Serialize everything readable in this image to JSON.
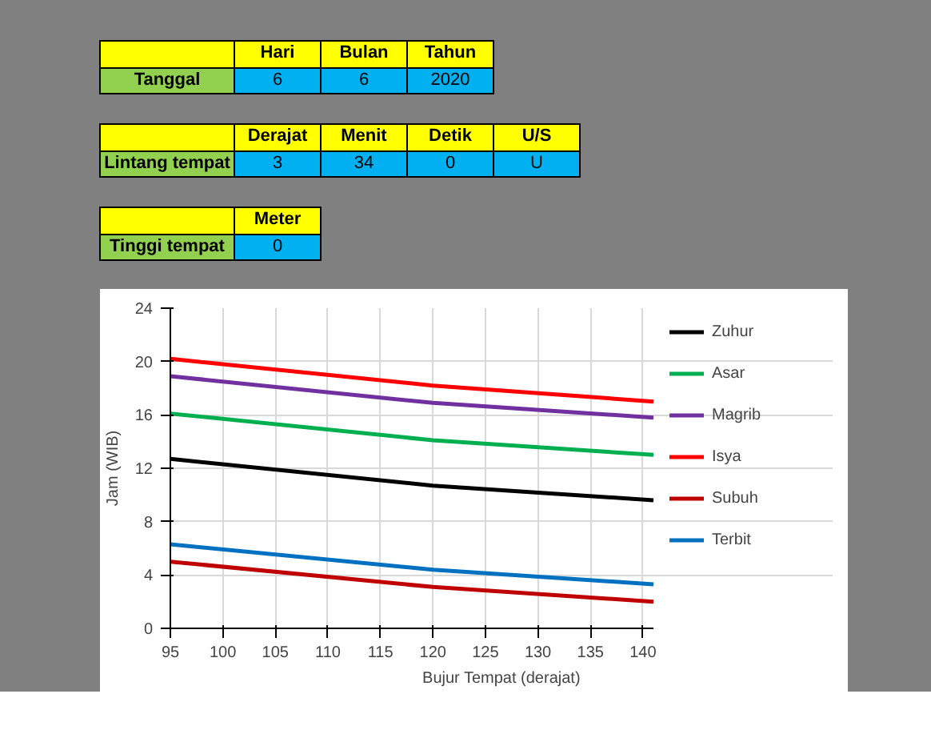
{
  "chart_data": [
    {
      "type": "other",
      "categories": [
        "Hari",
        "Bulan",
        "Tahun"
      ],
      "y_categories": [
        "Tanggal"
      ],
      "cell_labels": [
        [
          "6",
          "6",
          "2020"
        ]
      ]
    },
    {
      "type": "other",
      "categories": [
        "Derajat",
        "Menit",
        "Detik",
        "U/S"
      ],
      "y_categories": [
        "Lintang tempat"
      ],
      "cell_labels": [
        [
          "3",
          "34",
          "0",
          "U"
        ]
      ]
    },
    {
      "type": "other",
      "categories": [
        "Meter"
      ],
      "y_categories": [
        "Tinggi tempat"
      ],
      "cell_labels": [
        [
          "0"
        ]
      ]
    },
    {
      "type": "line",
      "xlabel": "Bujur Tempat (derajat)",
      "ylabel": "Jam (WIB)",
      "x": [
        95,
        120,
        141
      ],
      "xlim": [
        95,
        141
      ],
      "xticks": [
        95,
        100,
        105,
        110,
        115,
        120,
        125,
        130,
        135,
        140
      ],
      "ylim": [
        0,
        24
      ],
      "yticks": [
        0,
        4,
        8,
        12,
        16,
        20,
        24
      ],
      "grid": true,
      "legend": "right",
      "series": [
        {
          "name": "Zuhur",
          "color": "#000000",
          "values": [
            12.7,
            10.7,
            9.6
          ]
        },
        {
          "name": "Asar",
          "color": "#00b050",
          "values": [
            16.1,
            14.1,
            13.0
          ]
        },
        {
          "name": "Magrib",
          "color": "#7030a0",
          "values": [
            18.9,
            16.9,
            15.8
          ]
        },
        {
          "name": "Isya",
          "color": "#ff0000",
          "values": [
            20.2,
            18.2,
            17.0
          ]
        },
        {
          "name": "Subuh",
          "color": "#c00000",
          "values": [
            5.0,
            3.1,
            2.0
          ]
        },
        {
          "name": "Terbit",
          "color": "#0070c0",
          "values": [
            6.3,
            4.4,
            3.3
          ]
        }
      ]
    }
  ]
}
